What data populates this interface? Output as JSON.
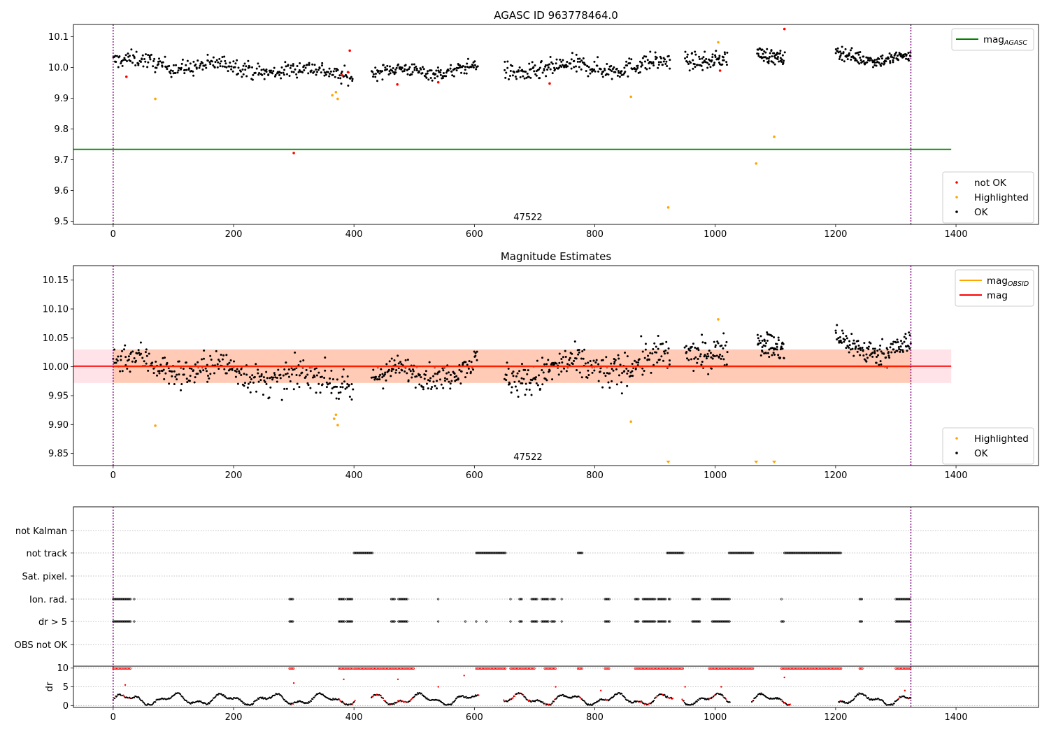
{
  "figure": {
    "title": "AGASC ID 963778464.0",
    "obsid_label": "47522"
  },
  "chart_data": [
    {
      "id": "top",
      "type": "scatter",
      "title": "AGASC ID 963778464.0",
      "xlim": [
        -66,
        1537
      ],
      "ylim": [
        9.49,
        10.14
      ],
      "xticks": [
        0,
        200,
        400,
        600,
        800,
        1000,
        1200,
        1400
      ],
      "yticks": [
        9.5,
        9.6,
        9.7,
        9.8,
        9.9,
        10.0,
        10.1
      ],
      "obs_lines": [
        0,
        1325
      ],
      "obsid_text": {
        "x": 665,
        "y": 9.515,
        "text": "47522"
      },
      "mag_agasc": {
        "value": 9.734,
        "x": [
          -66,
          1392
        ],
        "color": "#008000"
      },
      "legend_upper": [
        {
          "label": "mag",
          "sub": "AGASC",
          "color": "#008000",
          "kind": "line"
        }
      ],
      "legend_lower": [
        {
          "label": "not OK",
          "color": "#ff0000",
          "kind": "dot"
        },
        {
          "label": "Highlighted",
          "color": "#ffa500",
          "kind": "dot"
        },
        {
          "label": "OK",
          "color": "#000000",
          "kind": "dot"
        }
      ],
      "not_ok_points": [
        [
          22,
          9.97
        ],
        [
          300,
          9.722
        ],
        [
          393,
          10.055
        ],
        [
          472,
          9.945
        ],
        [
          540,
          9.952
        ],
        [
          725,
          9.948
        ],
        [
          1008,
          9.99
        ],
        [
          1115,
          10.125
        ],
        [
          380,
          9.975
        ],
        [
          390,
          9.985
        ]
      ],
      "highlighted_points": [
        [
          70,
          9.898
        ],
        [
          364,
          9.91
        ],
        [
          370,
          9.92
        ],
        [
          373,
          9.898
        ],
        [
          860,
          9.905
        ],
        [
          922,
          9.545
        ],
        [
          1005,
          10.082
        ],
        [
          1068,
          9.688
        ],
        [
          1098,
          9.775
        ]
      ],
      "ok_segments": [
        {
          "x": [
            0,
            398
          ],
          "n": 300,
          "base": [
            10.02,
            9.98
          ],
          "spread": 0.022
        },
        {
          "x": [
            430,
            605
          ],
          "n": 150,
          "base": [
            9.98,
            10.0
          ],
          "spread": 0.018
        },
        {
          "x": [
            650,
            925
          ],
          "n": 230,
          "base": [
            9.99,
            10.01
          ],
          "spread": 0.025
        },
        {
          "x": [
            950,
            1020
          ],
          "n": 70,
          "base": [
            10.03,
            10.03
          ],
          "spread": 0.022
        },
        {
          "x": [
            1070,
            1115
          ],
          "n": 60,
          "base": [
            10.04,
            10.04
          ],
          "spread": 0.02
        },
        {
          "x": [
            1200,
            1325
          ],
          "n": 130,
          "base": [
            10.04,
            10.03
          ],
          "spread": 0.018
        }
      ]
    },
    {
      "id": "middle",
      "type": "scatter",
      "title": "Magnitude Estimates",
      "xlim": [
        -66,
        1537
      ],
      "ylim": [
        9.829,
        10.175
      ],
      "xticks": [
        0,
        200,
        400,
        600,
        800,
        1000,
        1200,
        1400
      ],
      "yticks": [
        9.85,
        9.9,
        9.95,
        10.0,
        10.05,
        10.1,
        10.15
      ],
      "obs_lines": [
        0,
        1325
      ],
      "obsid_text": {
        "x": 665,
        "y": 9.845,
        "text": "47522"
      },
      "mag": {
        "value": 10.001,
        "x": [
          -66,
          1392
        ],
        "band": [
          9.972,
          10.03
        ],
        "color": "#ff0000"
      },
      "mag_obsid": {
        "value": 10.0,
        "x": [
          0,
          1325
        ],
        "band": [
          9.972,
          10.03
        ],
        "color": "#ffa500"
      },
      "legend_upper": [
        {
          "label": "mag",
          "sub": "OBSID",
          "color": "#ffa500",
          "kind": "line"
        },
        {
          "label": "mag",
          "sub": "",
          "color": "#ff0000",
          "kind": "line"
        }
      ],
      "legend_lower": [
        {
          "label": "Highlighted",
          "color": "#ffa500",
          "kind": "dot"
        },
        {
          "label": "OK",
          "color": "#000000",
          "kind": "dot"
        }
      ],
      "highlighted_points": [
        [
          70,
          9.898
        ],
        [
          367,
          9.91
        ],
        [
          370,
          9.917
        ],
        [
          373,
          9.899
        ],
        [
          860,
          9.905
        ],
        [
          1005,
          10.082
        ]
      ],
      "off_scale_markers": [
        922,
        1068,
        1098
      ],
      "ok_segments": [
        {
          "x": [
            0,
            398
          ],
          "n": 300,
          "base": [
            10.01,
            9.97
          ],
          "spread": 0.022
        },
        {
          "x": [
            430,
            605
          ],
          "n": 150,
          "base": [
            9.98,
            10.0
          ],
          "spread": 0.018
        },
        {
          "x": [
            650,
            925
          ],
          "n": 230,
          "base": [
            9.985,
            10.01
          ],
          "spread": 0.025
        },
        {
          "x": [
            950,
            1020
          ],
          "n": 70,
          "base": [
            10.03,
            10.03
          ],
          "spread": 0.022
        },
        {
          "x": [
            1070,
            1115
          ],
          "n": 60,
          "base": [
            10.04,
            10.04
          ],
          "spread": 0.02
        },
        {
          "x": [
            1200,
            1325
          ],
          "n": 130,
          "base": [
            10.04,
            10.03
          ],
          "spread": 0.018
        }
      ]
    },
    {
      "id": "flags",
      "type": "scatter",
      "xlim": [
        -66,
        1537
      ],
      "obs_lines": [
        0,
        1325
      ],
      "rows": [
        "not Kalman",
        "not track",
        "Sat. pixel.",
        "Ion. rad.",
        "dr > 5",
        "OBS not OK"
      ],
      "flag_ranges": {
        "not Kalman": [],
        "not track": [
          [
            400,
            432
          ],
          [
            603,
            652
          ],
          [
            772,
            780
          ],
          [
            920,
            948
          ],
          [
            1023,
            1063
          ],
          [
            1115,
            1210
          ]
        ],
        "Sat. pixel.": [],
        "Ion. rad.": [
          [
            0,
            30
          ],
          [
            35,
            35
          ],
          [
            293,
            300
          ],
          [
            375,
            385
          ],
          [
            388,
            398
          ],
          [
            462,
            468
          ],
          [
            474,
            490
          ],
          [
            540,
            540
          ],
          [
            660,
            660
          ],
          [
            675,
            680
          ],
          [
            695,
            705
          ],
          [
            712,
            724
          ],
          [
            728,
            735
          ],
          [
            745,
            745
          ],
          [
            817,
            825
          ],
          [
            867,
            873
          ],
          [
            880,
            900
          ],
          [
            905,
            918
          ],
          [
            923,
            925
          ],
          [
            962,
            975
          ],
          [
            995,
            1025
          ],
          [
            1110,
            1110
          ],
          [
            1240,
            1245
          ],
          [
            1300,
            1325
          ]
        ],
        "dr > 5": [
          [
            0,
            30
          ],
          [
            35,
            35
          ],
          [
            293,
            300
          ],
          [
            375,
            385
          ],
          [
            388,
            398
          ],
          [
            462,
            468
          ],
          [
            474,
            490
          ],
          [
            540,
            540
          ],
          [
            585,
            585
          ],
          [
            603,
            603
          ],
          [
            620,
            620
          ],
          [
            660,
            660
          ],
          [
            675,
            680
          ],
          [
            695,
            705
          ],
          [
            712,
            724
          ],
          [
            728,
            735
          ],
          [
            745,
            745
          ],
          [
            817,
            825
          ],
          [
            867,
            873
          ],
          [
            880,
            900
          ],
          [
            905,
            918
          ],
          [
            923,
            925
          ],
          [
            962,
            975
          ],
          [
            995,
            1025
          ],
          [
            1110,
            1115
          ],
          [
            1240,
            1245
          ],
          [
            1300,
            1325
          ]
        ],
        "OBS not OK": []
      }
    },
    {
      "id": "dr",
      "type": "scatter",
      "ylabel": "dr",
      "xlim": [
        -66,
        1537
      ],
      "ylim": [
        -0.5,
        10.5
      ],
      "xticks": [
        0,
        200,
        400,
        600,
        800,
        1000,
        1200,
        1400
      ],
      "yticks": [
        0,
        5,
        10
      ],
      "obs_lines": [
        0,
        1325
      ],
      "dr_high_ranges": [
        [
          0,
          30
        ],
        [
          293,
          300
        ],
        [
          375,
          398
        ],
        [
          400,
          500
        ],
        [
          603,
          652
        ],
        [
          660,
          700
        ],
        [
          717,
          735
        ],
        [
          772,
          780
        ],
        [
          817,
          825
        ],
        [
          867,
          948
        ],
        [
          990,
          1063
        ],
        [
          1110,
          1210
        ],
        [
          1240,
          1245
        ],
        [
          1300,
          1325
        ]
      ],
      "dr_spikes": [
        [
          20,
          5.5
        ],
        [
          300,
          6
        ],
        [
          383,
          7
        ],
        [
          473,
          7
        ],
        [
          540,
          5
        ],
        [
          583,
          8
        ],
        [
          735,
          5
        ],
        [
          810,
          4
        ],
        [
          950,
          5
        ],
        [
          1010,
          5
        ],
        [
          1115,
          7.5
        ],
        [
          1315,
          4
        ]
      ]
    }
  ]
}
